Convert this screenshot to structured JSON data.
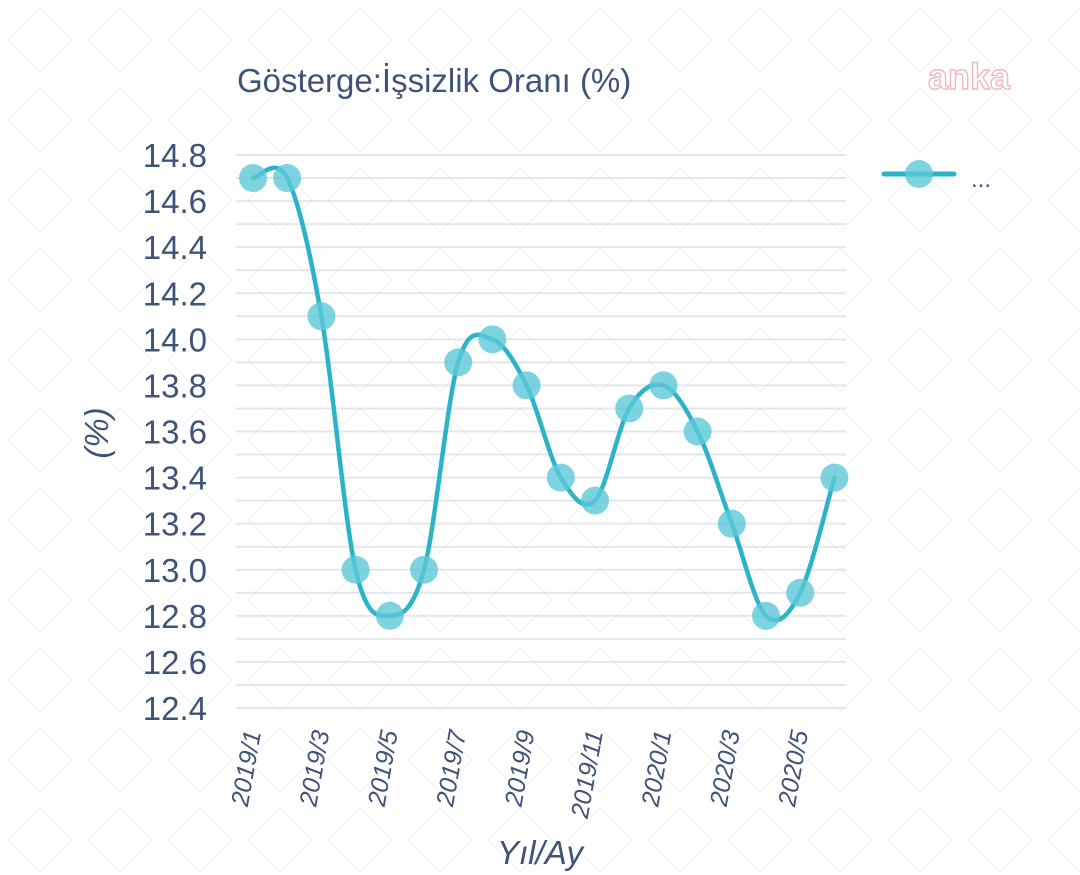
{
  "watermark": "anka",
  "colors": {
    "series": "#2bb3c8",
    "point": "#5cc8d8",
    "text": "#3d5478",
    "grid": "#e4e7ea"
  },
  "chart_data": {
    "type": "line",
    "title": "Gösterge:İşsizlik Oranı (%)",
    "xlabel": "Yıl/Ay",
    "ylabel": "(%)",
    "x": [
      "2019/1",
      "2019/2",
      "2019/3",
      "2019/4",
      "2019/5",
      "2019/6",
      "2019/7",
      "2019/8",
      "2019/9",
      "2019/10",
      "2019/11",
      "2019/12",
      "2020/1",
      "2020/2",
      "2020/3",
      "2020/4",
      "2020/5",
      "2020/6"
    ],
    "x_tick_labels": [
      "2019/1",
      "2019/3",
      "2019/5",
      "2019/7",
      "2019/9",
      "2019/11",
      "2020/1",
      "2020/3",
      "2020/5"
    ],
    "y_tick_labels": [
      "12.4",
      "12.6",
      "12.8",
      "13.0",
      "13.2",
      "13.4",
      "13.6",
      "13.8",
      "14.0",
      "14.2",
      "14.4",
      "14.6",
      "14.8"
    ],
    "ylim": [
      12.4,
      14.8
    ],
    "grid": true,
    "legend_position": "top-right",
    "series": [
      {
        "legend_label": "...",
        "values": [
          14.7,
          14.7,
          14.1,
          13.0,
          12.8,
          13.0,
          13.9,
          14.0,
          13.8,
          13.4,
          13.3,
          13.7,
          13.8,
          13.6,
          13.2,
          12.8,
          12.9,
          13.4
        ]
      }
    ]
  }
}
